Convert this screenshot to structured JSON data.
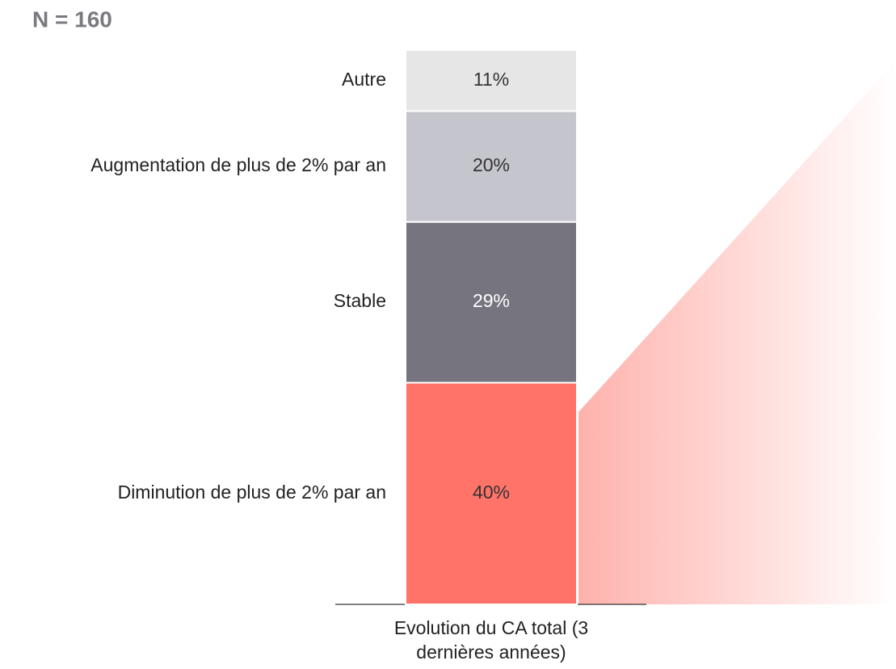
{
  "chart_data": {
    "type": "stacked_bar",
    "title": "N = 160",
    "categories": [
      "Evolution du CA total (3 dernières années)"
    ],
    "ylim": [
      0,
      100
    ],
    "series": [
      {
        "name": "Diminution de plus de 2% par an",
        "color": "#ff7369",
        "values": [
          40
        ],
        "value_labels": [
          "40%"
        ]
      },
      {
        "name": "Stable",
        "color": "#75747f",
        "values": [
          29
        ],
        "value_labels": [
          "29%"
        ]
      },
      {
        "name": "Augmentation de plus de 2% par an",
        "color": "#c5c5cd",
        "values": [
          20
        ],
        "value_labels": [
          "20%"
        ]
      },
      {
        "name": "Autre",
        "color": "#e6e6e6",
        "values": [
          11
        ],
        "value_labels": [
          "11%"
        ]
      }
    ]
  }
}
